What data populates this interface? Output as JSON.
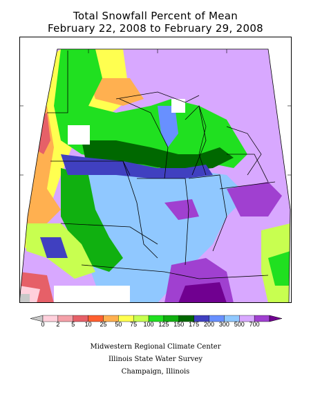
{
  "title": {
    "line1": "Total Snowfall Percent of Mean",
    "line2": "February 22, 2008 to February 29, 2008"
  },
  "legend": {
    "labels": [
      "0",
      "2",
      "5",
      "10",
      "25",
      "50",
      "75",
      "100",
      "125",
      "150",
      "175",
      "200",
      "300",
      "500",
      "700"
    ],
    "colors": [
      "#c8c8c8",
      "#ffd0dc",
      "#f4a0a8",
      "#e66068",
      "#ff6030",
      "#ffb050",
      "#ffff50",
      "#c8ff50",
      "#20e020",
      "#10b010",
      "#006800",
      "#4040c0",
      "#6890ff",
      "#90c8ff",
      "#d8a8ff",
      "#a040d0",
      "#700090"
    ]
  },
  "map_colors": {
    "none": "#c8c8c8",
    "pink": "#ffd0dc",
    "red": "#e66068",
    "orange": "#ffb050",
    "yellow": "#ffff50",
    "lime": "#c8ff50",
    "green": "#20e020",
    "mid_green": "#10b010",
    "dark_green": "#006800",
    "blue": "#4040c0",
    "light_blue": "#6890ff",
    "sky": "#90c8ff",
    "lavender": "#d8a8ff",
    "violet": "#a040d0",
    "purple": "#700090",
    "white": "#ffffff"
  },
  "credits": {
    "line1": "Midwestern Regional Climate Center",
    "line2": "Illinois State Water Survey",
    "line3": "Champaign, Illinois"
  }
}
